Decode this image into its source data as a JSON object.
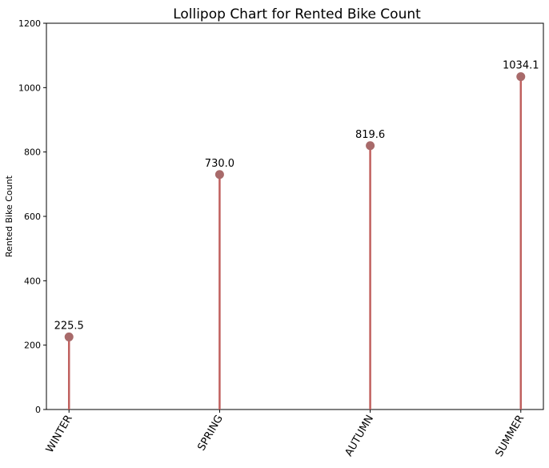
{
  "chart_data": {
    "type": "lollipop",
    "title": "Lollipop Chart for Rented Bike Count",
    "xlabel": "",
    "ylabel": "Rented Bike Count",
    "categories": [
      "WINTER",
      "SPRING",
      "AUTUMN",
      "SUMMER"
    ],
    "values": [
      225.5,
      730.0,
      819.6,
      1034.1
    ],
    "value_labels": [
      "225.5",
      "730.0",
      "819.6",
      "1034.1"
    ],
    "ylim": [
      0,
      1200
    ],
    "yticks": [
      0,
      200,
      400,
      600,
      800,
      1000,
      1200
    ],
    "grid": false,
    "colors": {
      "stem": "#c0605e",
      "marker": "#a86a6a"
    }
  }
}
